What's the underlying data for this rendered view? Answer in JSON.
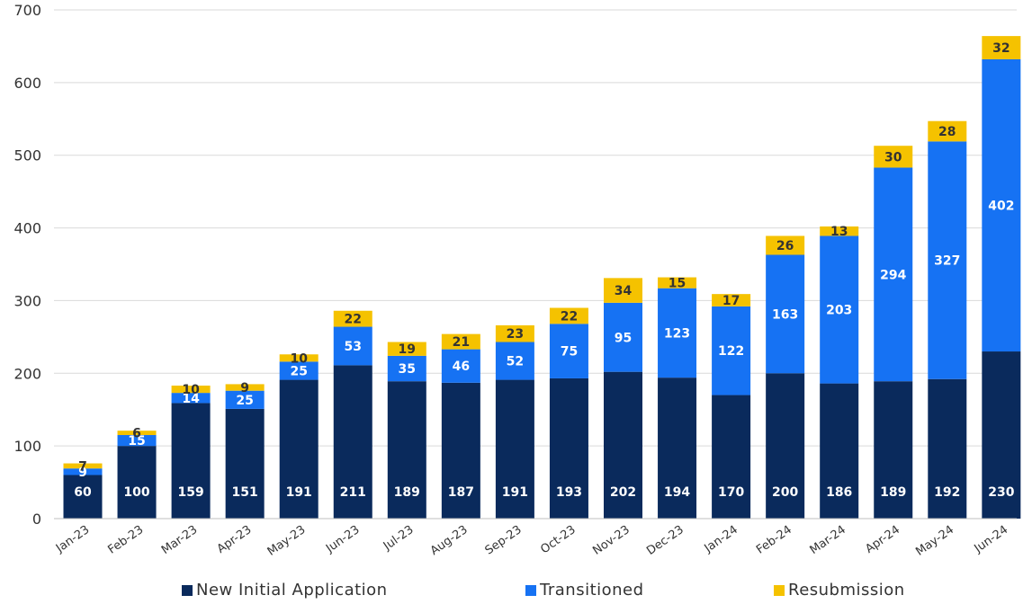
{
  "chart_data": {
    "type": "bar",
    "stacked": true,
    "categories": [
      "Jan-23",
      "Feb-23",
      "Mar-23",
      "Apr-23",
      "May-23",
      "Jun-23",
      "Jul-23",
      "Aug-23",
      "Sep-23",
      "Oct-23",
      "Nov-23",
      "Dec-23",
      "Jan-24",
      "Feb-24",
      "Mar-24",
      "Apr-24",
      "May-24",
      "Jun-24"
    ],
    "series": [
      {
        "name": "New Initial Application",
        "color": "#0a2a5c",
        "label_color": "#ffffff",
        "values": [
          60,
          100,
          159,
          151,
          191,
          211,
          189,
          187,
          191,
          193,
          202,
          194,
          170,
          200,
          186,
          189,
          192,
          230
        ]
      },
      {
        "name": "Transitioned",
        "color": "#1672f3",
        "label_color": "#ffffff",
        "values": [
          9,
          15,
          14,
          25,
          25,
          53,
          35,
          46,
          52,
          75,
          95,
          123,
          122,
          163,
          203,
          294,
          327,
          402
        ]
      },
      {
        "name": "Resubmission",
        "color": "#f5c200",
        "label_color": "#333333",
        "values": [
          7,
          6,
          10,
          9,
          10,
          22,
          19,
          21,
          23,
          22,
          34,
          15,
          17,
          26,
          13,
          30,
          28,
          32
        ]
      }
    ],
    "ylim": [
      0,
      700
    ],
    "yticks": [
      0,
      100,
      200,
      300,
      400,
      500,
      600,
      700
    ],
    "grid": true,
    "legend_position": "bottom"
  }
}
